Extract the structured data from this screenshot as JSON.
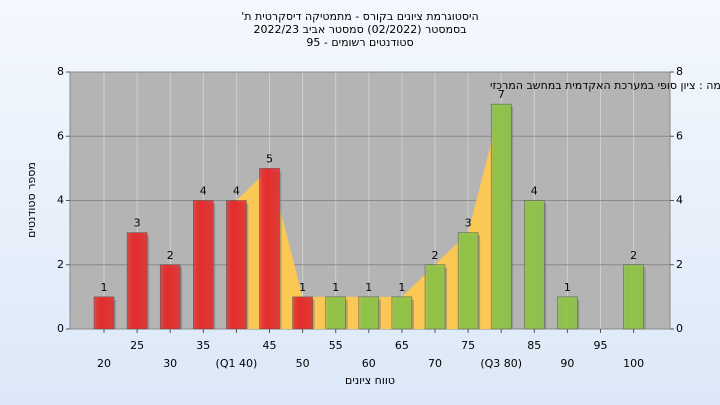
{
  "chart_data": {
    "type": "bar",
    "title": [
      "היסטוגרמת ציונים בקורס - מתמטיקה דיסקרטית ת'",
      "בסמסטר  (02/2022)  סמסטר אביב 2022/23",
      "סטודנטים רשומים - 95"
    ],
    "annotation": "במשימה : ציון סופי במערכת האקדמית במחשב המרכזי",
    "y_label": "מספר סטודנטים",
    "x_label": "טווח ציונים",
    "categories": [
      "20",
      "25",
      "30",
      "35",
      "(Q1 40)",
      "45",
      "50",
      "55",
      "60",
      "65",
      "70",
      "75",
      "(Q3 80)",
      "85",
      "90",
      "95",
      "100"
    ],
    "values": [
      1,
      3,
      2,
      4,
      4,
      5,
      1,
      1,
      1,
      1,
      2,
      3,
      7,
      4,
      1,
      null,
      2
    ],
    "colors": [
      "#e42c2c",
      "#e42c2c",
      "#e42c2c",
      "#e42c2c",
      "#e42c2c",
      "#e42c2c",
      "#e42c2c",
      "#8fc447",
      "#8fc447",
      "#8fc447",
      "#8fc447",
      "#8fc447",
      "#8fc447",
      "#8fc447",
      "#8fc447",
      null,
      "#8fc447"
    ],
    "ylim": [
      0,
      8
    ],
    "yticks": [
      0,
      2,
      4,
      6,
      8
    ],
    "grid": true
  }
}
